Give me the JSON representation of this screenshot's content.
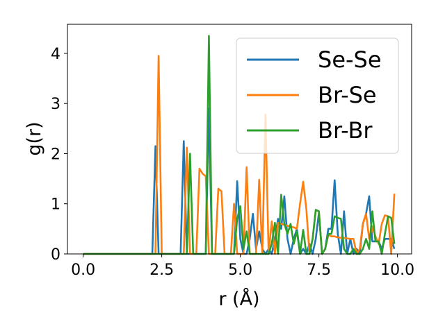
{
  "chart_data": {
    "type": "line",
    "title": "",
    "xlabel": "r (Å)",
    "ylabel": "g(r)",
    "xlim": [
      -0.5,
      10.45
    ],
    "ylim": [
      0,
      4.58
    ],
    "xticks": [
      "0.0",
      "2.5",
      "5.0",
      "7.5",
      "10.0"
    ],
    "xtick_values": [
      0,
      2.5,
      5,
      7.5,
      10
    ],
    "yticks": [
      "0",
      "1",
      "2",
      "3",
      "4"
    ],
    "ytick_values": [
      0,
      1,
      2,
      3,
      4
    ],
    "grid": false,
    "legend_placement": "upper right",
    "x_start": 0.0,
    "x_step": 0.1,
    "series": [
      {
        "name": "Se-Se",
        "color": "#1f77b4",
        "values": [
          0,
          0,
          0,
          0,
          0,
          0,
          0,
          0,
          0,
          0,
          0,
          0,
          0,
          0,
          0,
          0,
          0,
          0,
          0,
          0,
          0,
          0,
          0,
          2.15,
          0,
          0,
          0,
          0,
          0,
          0,
          0,
          0,
          2.25,
          0,
          0,
          0,
          0,
          0,
          0,
          0,
          2.9,
          0,
          0,
          0,
          0,
          0,
          0,
          0,
          0,
          1.45,
          0.3,
          0,
          0,
          0.3,
          0.8,
          0.1,
          0.45,
          0.1,
          0,
          0.1,
          0,
          0.3,
          0.7,
          0.5,
          1.15,
          0.3,
          0,
          0.3,
          0.5,
          0,
          0.1,
          0,
          0.2,
          0,
          0.3,
          0.82,
          0,
          0.1,
          0.5,
          0.5,
          1.47,
          0.4,
          0,
          0.85,
          0,
          0.3,
          0,
          0.1,
          0,
          0.6,
          0.8,
          1.15,
          0.25,
          0.25,
          0.25,
          0.1,
          0.3,
          0.3,
          0.3,
          0.1
        ]
      },
      {
        "name": "Br-Se",
        "color": "#ff7f0e",
        "values": [
          0,
          0,
          0,
          0,
          0,
          0,
          0,
          0,
          0,
          0,
          0,
          0,
          0,
          0,
          0,
          0,
          0,
          0,
          0,
          0,
          0,
          0,
          0,
          0,
          3.95,
          0,
          0,
          0,
          0,
          0,
          0,
          0,
          0,
          2.12,
          0,
          0,
          0,
          1.7,
          1.6,
          1.55,
          0,
          0,
          0,
          1.3,
          1.25,
          0,
          0,
          0,
          1.0,
          0,
          0,
          0,
          1.73,
          0,
          0,
          0,
          1.48,
          0,
          2.78,
          0,
          0.65,
          0,
          0.62,
          0.6,
          0.58,
          0.56,
          0.55,
          0.53,
          0.5,
          1.0,
          1.44,
          0.9,
          0,
          0.3,
          0.87,
          0.85,
          0,
          0.1,
          0.38,
          0.35,
          0.35,
          0.33,
          0.32,
          0.32,
          0.31,
          0.3,
          0.3,
          0,
          0.1,
          0.6,
          0.8,
          0.3,
          0.55,
          0.35,
          0.2,
          0.6,
          0.77,
          0.75,
          0,
          1.2
        ]
      },
      {
        "name": "Br-Br",
        "color": "#2ca02c",
        "values": [
          0,
          0,
          0,
          0,
          0,
          0,
          0,
          0,
          0,
          0,
          0,
          0,
          0,
          0,
          0,
          0,
          0,
          0,
          0,
          0,
          0,
          0,
          0,
          0,
          0,
          0,
          0,
          0,
          0,
          0,
          0,
          0,
          0,
          0,
          2.0,
          0,
          0,
          0,
          0,
          0,
          4.35,
          0,
          0,
          0,
          0,
          0,
          0,
          0,
          0,
          0.7,
          0.95,
          0.1,
          0.45,
          0,
          0,
          0,
          0,
          0,
          0,
          0,
          0.2,
          0.62,
          0,
          1.18,
          0.6,
          0.4,
          0.6,
          0.2,
          0.45,
          0,
          0.48,
          0,
          0,
          0.3,
          0.88,
          0.85,
          0,
          0.1,
          0.4,
          0.4,
          0.75,
          0.72,
          0.7,
          0.1,
          0,
          0,
          0.1,
          0,
          0,
          0.1,
          0.3,
          0.1,
          0.85,
          0.25,
          0.25,
          0,
          0.4,
          0.75,
          0.72,
          0.2
        ]
      }
    ]
  }
}
